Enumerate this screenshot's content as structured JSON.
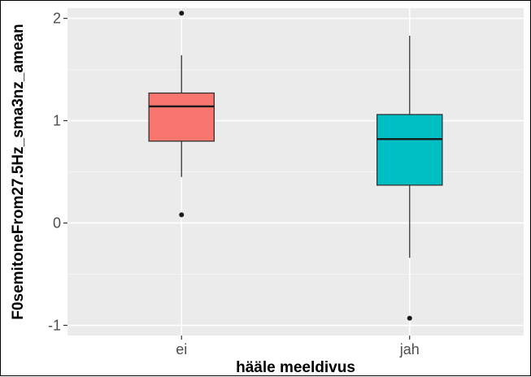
{
  "chart_data": {
    "type": "boxplot",
    "xlabel": "hääle meeldivus",
    "ylabel": "F0semitoneFrom27.5Hz_sma3nz_amean",
    "ylim": [
      -1.1,
      2.1
    ],
    "yticks": [
      -1,
      0,
      1,
      2
    ],
    "yticklabels": [
      "-1",
      "0",
      "1",
      "2"
    ],
    "grid": true,
    "legend": "none",
    "categories": [
      "ei",
      "jah"
    ],
    "boxes": [
      {
        "category": "ei",
        "color": "#F8766D",
        "whisker_low": 0.45,
        "q1": 0.8,
        "median": 1.14,
        "q3": 1.27,
        "whisker_high": 1.64,
        "outliers": [
          2.05,
          0.08
        ]
      },
      {
        "category": "jah",
        "color": "#00BFC4",
        "whisker_low": -0.34,
        "q1": 0.37,
        "median": 0.82,
        "q3": 1.06,
        "whisker_high": 1.83,
        "outliers": [
          -0.93
        ]
      }
    ]
  },
  "colors": {
    "panel_bg": "#EBEBEB",
    "grid_major": "#FFFFFF",
    "grid_minor": "#F5F5F5"
  }
}
